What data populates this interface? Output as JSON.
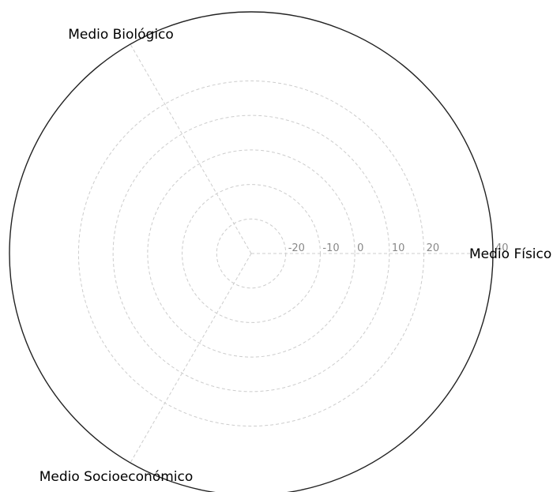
{
  "chart_data": {
    "type": "radar",
    "axes": [
      "Medio Físico",
      "Medio Biológico",
      "Medio Socioeconómico"
    ],
    "rlim": [
      -30,
      40
    ],
    "ticks": [
      -20,
      -10,
      0,
      10,
      20,
      40
    ],
    "tick_labels": [
      "-20",
      "-10",
      "0",
      "10",
      "20",
      "40"
    ],
    "grid": true,
    "series": []
  }
}
